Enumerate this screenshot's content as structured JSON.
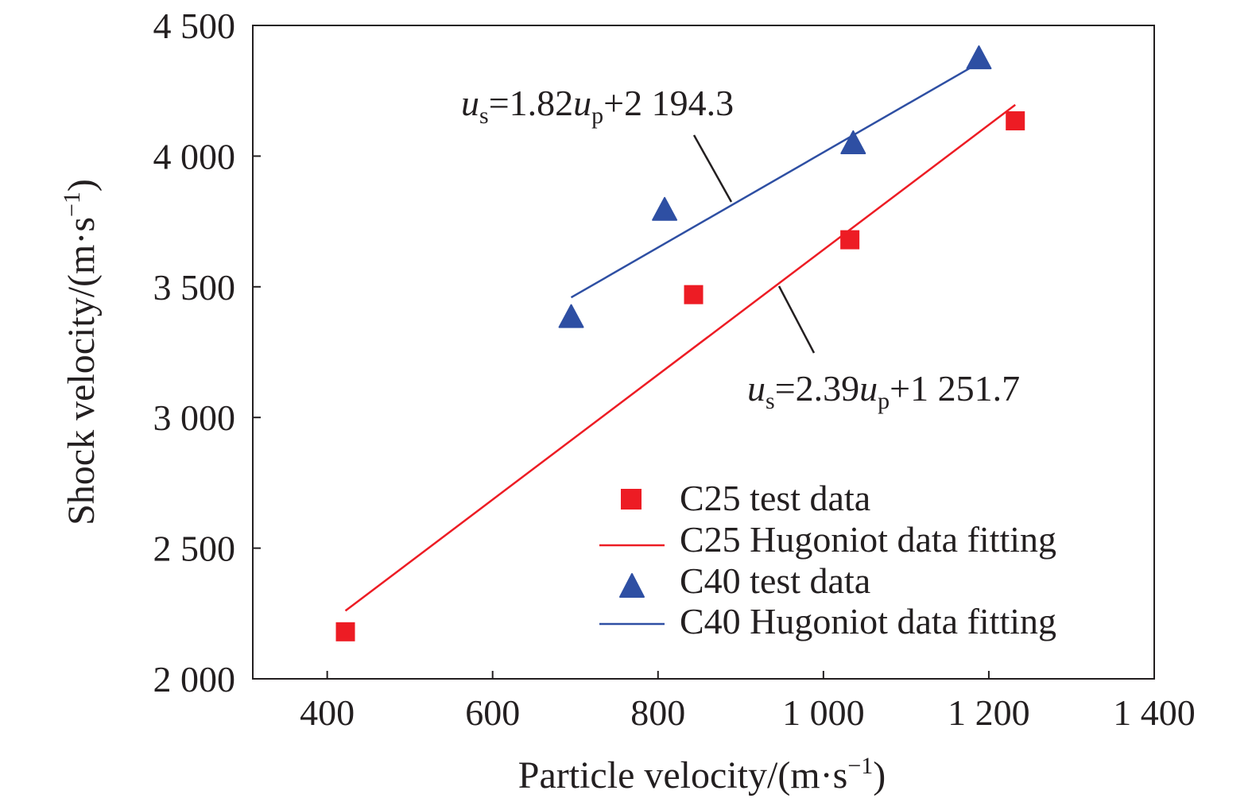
{
  "chart_data": {
    "type": "scatter",
    "title": "",
    "xlabel": "Particle velocity/(m·s",
    "xlabel_sup": "−1",
    "xlabel_close": ")",
    "ylabel": "Shock velocity/(m·s",
    "ylabel_sup": "−1",
    "ylabel_close": ")",
    "xlim": [
      310,
      1400
    ],
    "ylim": [
      2000,
      4500
    ],
    "x_ticks": [
      400,
      600,
      800,
      1000,
      1200,
      1400
    ],
    "x_tick_labels": [
      "400",
      "600",
      "800",
      "1 000",
      "1 200",
      "1 400"
    ],
    "y_ticks": [
      2000,
      2500,
      3000,
      3500,
      4000,
      4500
    ],
    "y_tick_labels": [
      "2 000",
      "2 500",
      "3 000",
      "3 500",
      "4 000",
      "4 500"
    ],
    "grid": false,
    "legend_position": "bottom-right",
    "series": [
      {
        "name": "C25 test data",
        "kind": "points",
        "marker": "square",
        "color": "#ed1c24",
        "points": [
          [
            422,
            2180
          ],
          [
            843,
            3470
          ],
          [
            1032,
            3680
          ],
          [
            1232,
            4135
          ]
        ]
      },
      {
        "name": "C25 Hugoniot data fitting",
        "kind": "line",
        "color": "#ed1c24",
        "slope": 2.39,
        "intercept": 1251.7,
        "x_range": [
          422,
          1232
        ]
      },
      {
        "name": "C40 test data",
        "kind": "points",
        "marker": "triangle",
        "color": "#2e4fa3",
        "points": [
          [
            695,
            3385
          ],
          [
            808,
            3795
          ],
          [
            1036,
            4050
          ],
          [
            1188,
            4375
          ]
        ]
      },
      {
        "name": "C40 Hugoniot data fitting",
        "kind": "line",
        "color": "#2e4fa3",
        "slope": 1.82,
        "intercept": 2194.3,
        "x_range": [
          695,
          1188
        ]
      }
    ],
    "annotations": [
      {
        "var": "u",
        "sub": "s",
        "mid": "=1.82",
        "var2": "u",
        "sub2": "p",
        "tail": "+2 194.3"
      },
      {
        "var": "u",
        "sub": "s",
        "mid": "=2.39",
        "var2": "u",
        "sub2": "p",
        "tail": "+1 251.7"
      }
    ]
  }
}
